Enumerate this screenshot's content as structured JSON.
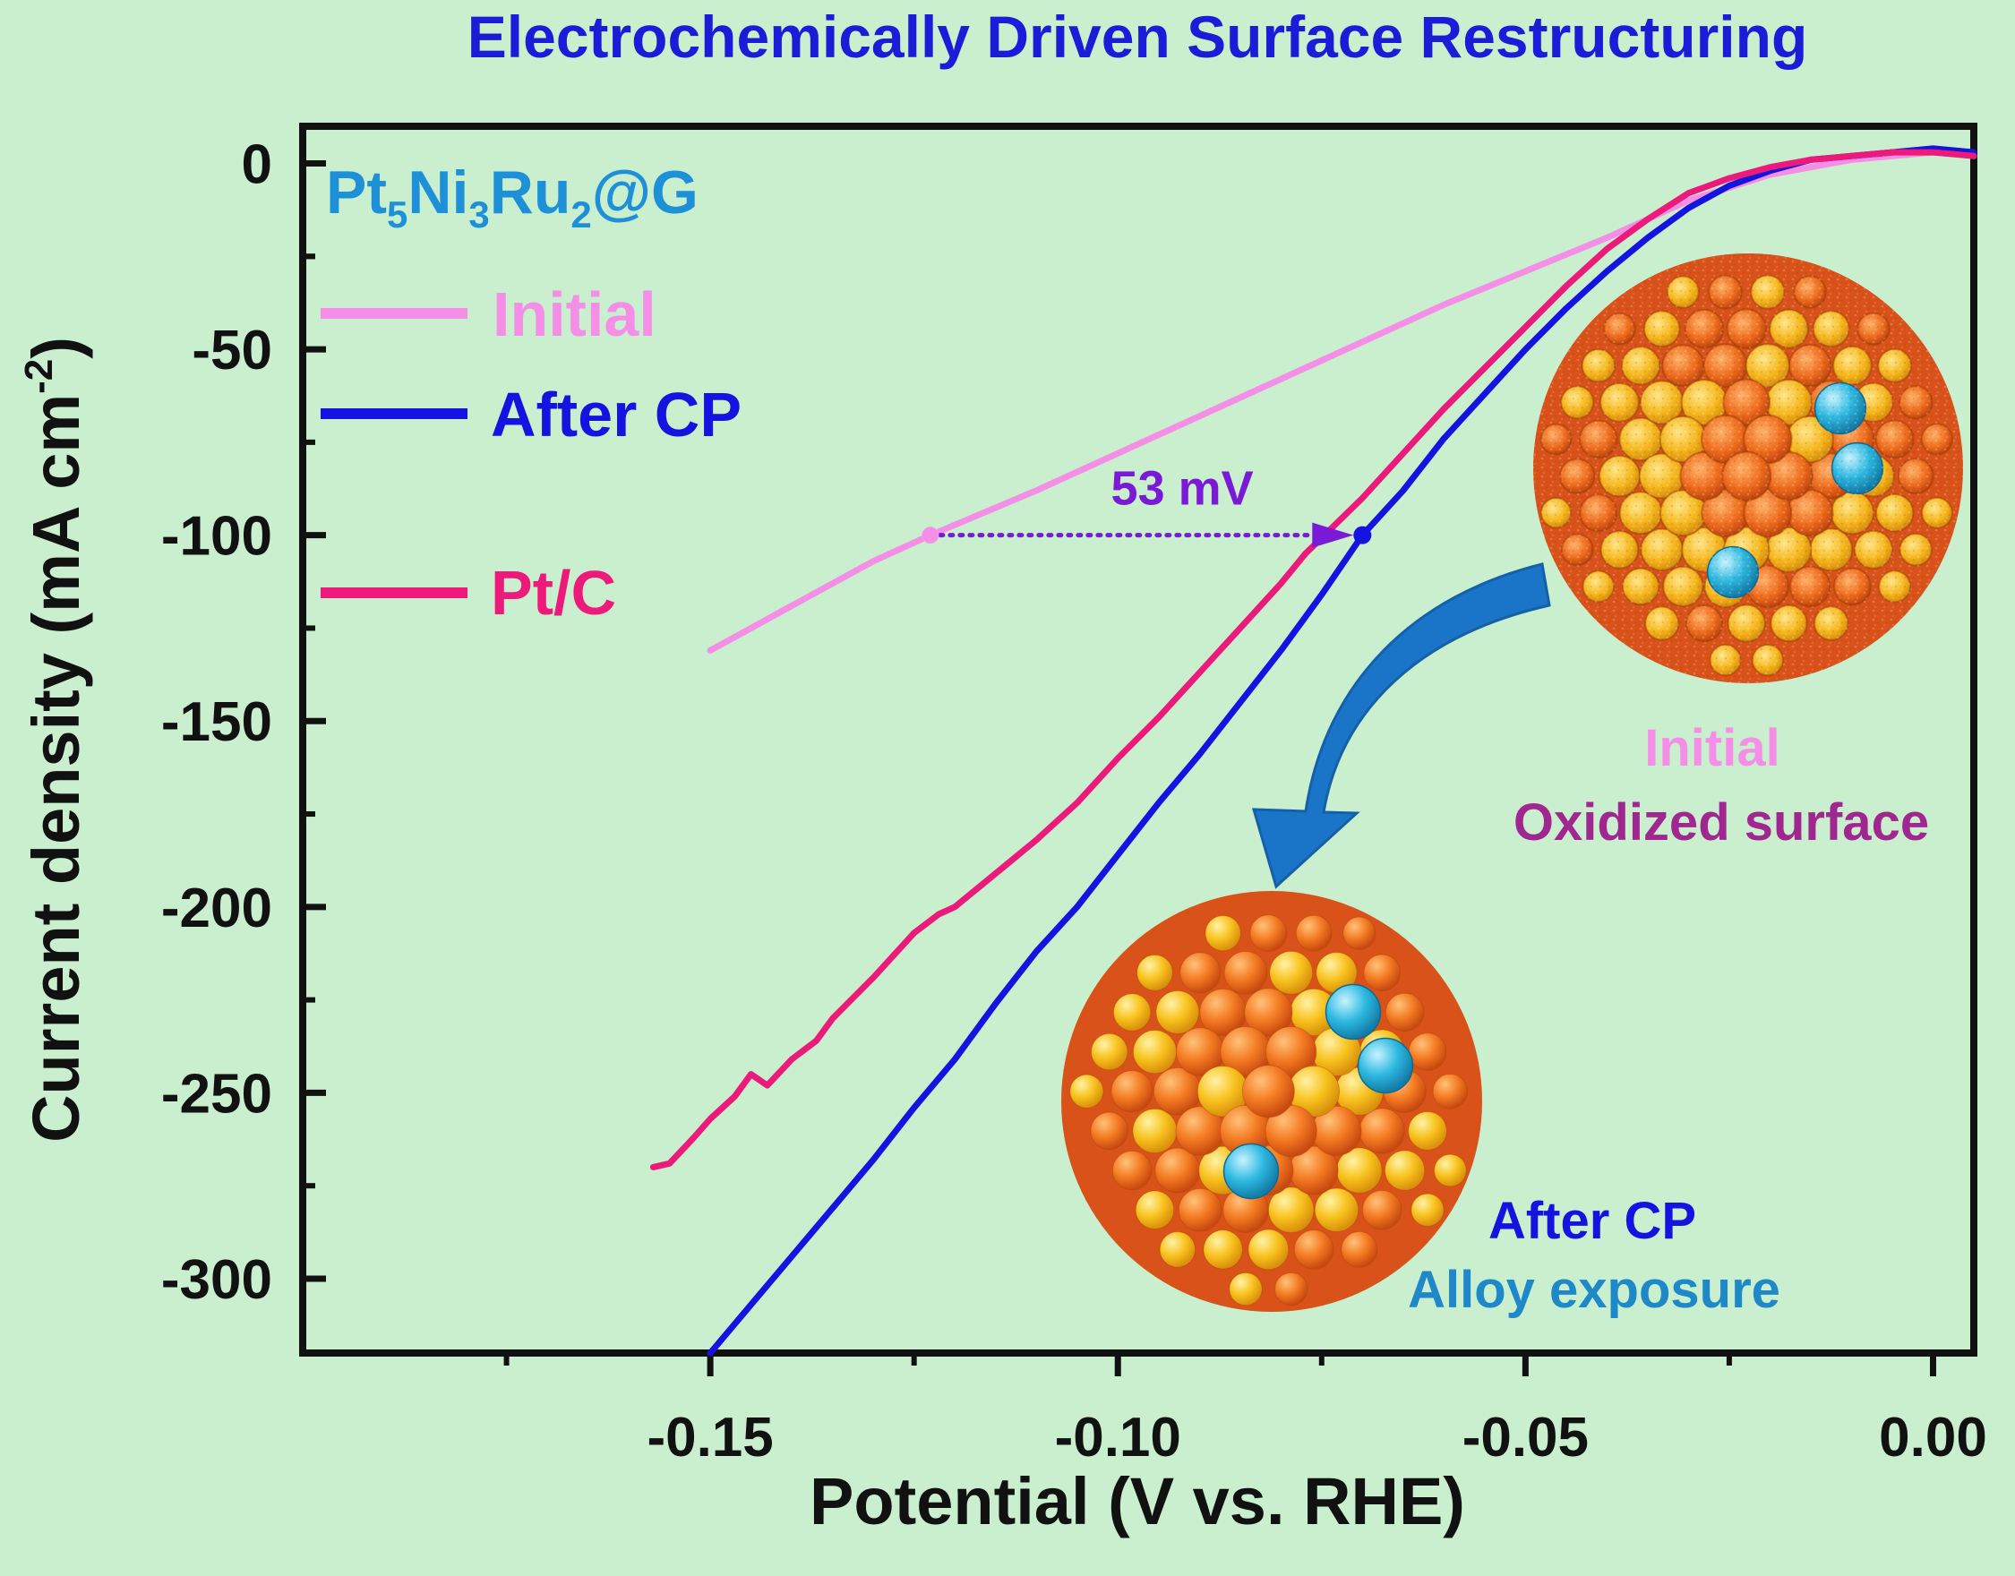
{
  "title": "Electrochemically Driven Surface Restructuring",
  "colors": {
    "background": "#c9efcf",
    "title": "#1c1cd8",
    "initial": "#f58ee6",
    "after_cp": "#1414e0",
    "ptc": "#ec1a7b",
    "annotation": "#7a1ad6",
    "sample_label": "#1e90d8",
    "oxidized_label": "#a0278f",
    "alloy_label": "#1e88c8",
    "arrow": "#1a74c8"
  },
  "chart_data": {
    "type": "line",
    "title": "Electrochemically Driven Surface Restructuring",
    "xlabel": "Potential (V vs. RHE)",
    "ylabel": "Current density (mA cm",
    "ylabel_sup": "-2",
    "ylabel_close": ")",
    "xlim": [
      -0.2,
      0.005
    ],
    "ylim": [
      -320,
      10
    ],
    "xticks": [
      -0.15,
      -0.1,
      -0.05,
      0.0
    ],
    "xtick_labels": [
      "-0.15",
      "-0.10",
      "-0.05",
      "0.00"
    ],
    "yticks": [
      0,
      -50,
      -100,
      -150,
      -200,
      -250,
      -300
    ],
    "ytick_labels": [
      "0",
      "-50",
      "-100",
      "-150",
      "-200",
      "-250",
      "-300"
    ],
    "grid": false,
    "legend_placement": "top-left",
    "sample_label": {
      "base1": "Pt",
      "sub1": "5",
      "base2": "Ni",
      "sub2": "3",
      "base3": "Ru",
      "sub3": "2",
      "tail": "@G"
    },
    "series": [
      {
        "name": "Initial",
        "color_key": "initial",
        "points": [
          [
            -0.15,
            -131
          ],
          [
            -0.14,
            -119
          ],
          [
            -0.13,
            -107
          ],
          [
            -0.123,
            -100
          ],
          [
            -0.11,
            -88
          ],
          [
            -0.1,
            -78
          ],
          [
            -0.09,
            -68
          ],
          [
            -0.08,
            -58
          ],
          [
            -0.07,
            -48
          ],
          [
            -0.06,
            -38
          ],
          [
            -0.05,
            -29
          ],
          [
            -0.04,
            -20
          ],
          [
            -0.03,
            -10
          ],
          [
            -0.02,
            -3
          ],
          [
            -0.01,
            1
          ],
          [
            0.0,
            3
          ],
          [
            0.005,
            2
          ]
        ]
      },
      {
        "name": "After CP",
        "color_key": "after_cp",
        "points": [
          [
            -0.15,
            -320
          ],
          [
            -0.145,
            -307
          ],
          [
            -0.14,
            -294
          ],
          [
            -0.135,
            -281
          ],
          [
            -0.13,
            -268
          ],
          [
            -0.125,
            -254
          ],
          [
            -0.12,
            -241
          ],
          [
            -0.115,
            -226
          ],
          [
            -0.11,
            -212
          ],
          [
            -0.105,
            -200
          ],
          [
            -0.1,
            -186
          ],
          [
            -0.095,
            -172
          ],
          [
            -0.09,
            -159
          ],
          [
            -0.085,
            -145
          ],
          [
            -0.08,
            -131
          ],
          [
            -0.075,
            -116
          ],
          [
            -0.07,
            -100
          ],
          [
            -0.065,
            -88
          ],
          [
            -0.06,
            -74
          ],
          [
            -0.055,
            -62
          ],
          [
            -0.05,
            -50
          ],
          [
            -0.045,
            -39
          ],
          [
            -0.04,
            -29
          ],
          [
            -0.035,
            -20
          ],
          [
            -0.03,
            -12
          ],
          [
            -0.025,
            -6
          ],
          [
            -0.02,
            -2
          ],
          [
            -0.015,
            1
          ],
          [
            -0.01,
            2
          ],
          [
            -0.005,
            3
          ],
          [
            0.0,
            4
          ],
          [
            0.005,
            3
          ]
        ]
      },
      {
        "name": "Pt/C",
        "color_key": "ptc",
        "points": [
          [
            -0.157,
            -270
          ],
          [
            -0.155,
            -269
          ],
          [
            -0.152,
            -262
          ],
          [
            -0.15,
            -257
          ],
          [
            -0.147,
            -251
          ],
          [
            -0.145,
            -245
          ],
          [
            -0.143,
            -248
          ],
          [
            -0.14,
            -241
          ],
          [
            -0.137,
            -236
          ],
          [
            -0.135,
            -230
          ],
          [
            -0.13,
            -219
          ],
          [
            -0.125,
            -207
          ],
          [
            -0.122,
            -202
          ],
          [
            -0.12,
            -200
          ],
          [
            -0.115,
            -191
          ],
          [
            -0.11,
            -182
          ],
          [
            -0.105,
            -172
          ],
          [
            -0.1,
            -160
          ],
          [
            -0.095,
            -149
          ],
          [
            -0.09,
            -137
          ],
          [
            -0.085,
            -125
          ],
          [
            -0.08,
            -113
          ],
          [
            -0.077,
            -105
          ],
          [
            -0.07,
            -90
          ],
          [
            -0.065,
            -78
          ],
          [
            -0.06,
            -66
          ],
          [
            -0.055,
            -55
          ],
          [
            -0.05,
            -44
          ],
          [
            -0.045,
            -33
          ],
          [
            -0.04,
            -23
          ],
          [
            -0.035,
            -15
          ],
          [
            -0.03,
            -8
          ],
          [
            -0.025,
            -4
          ],
          [
            -0.02,
            -1
          ],
          [
            -0.015,
            1
          ],
          [
            -0.01,
            2
          ],
          [
            -0.005,
            3
          ],
          [
            0.0,
            3
          ],
          [
            0.005,
            2
          ]
        ]
      }
    ],
    "annotation": {
      "text": "53 mV",
      "from": [
        -0.123,
        -100
      ],
      "to": [
        -0.07,
        -100
      ]
    },
    "inset_labels": {
      "initial_title": "Initial",
      "initial_subtitle": "Oxidized surface",
      "after_title": "After CP",
      "after_subtitle": "Alloy exposure"
    }
  }
}
